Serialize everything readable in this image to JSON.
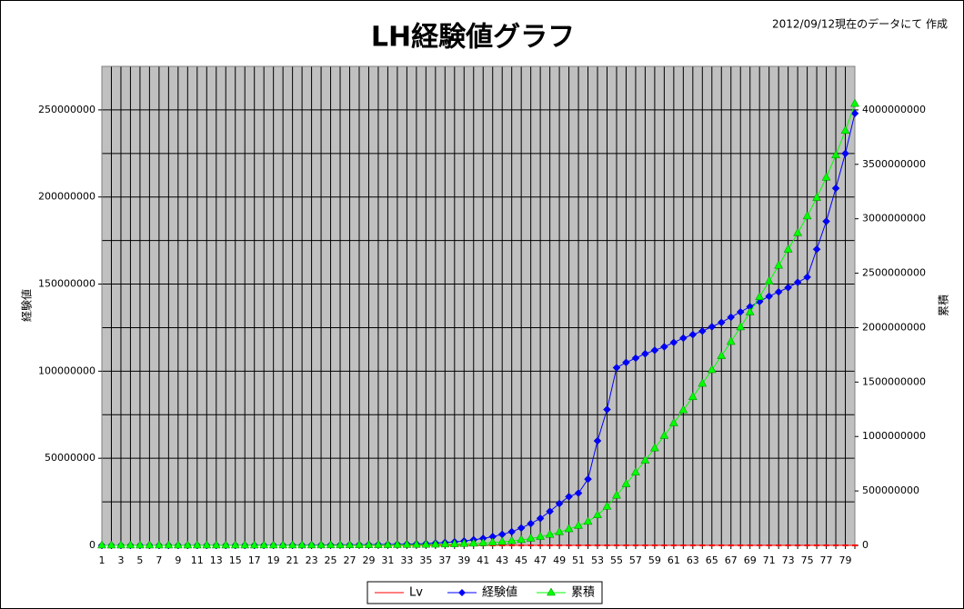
{
  "chart_data": {
    "type": "line",
    "title": "LH経験値グラフ",
    "subtitle": "2012/09/12現在のデータにて 作成",
    "y_label": "経験値",
    "y2_label": "累積",
    "categories": [
      "1",
      null,
      "3",
      null,
      "5",
      null,
      "7",
      null,
      "9",
      null,
      "11",
      null,
      "13",
      null,
      "15",
      null,
      "17",
      null,
      "19",
      null,
      "21",
      null,
      "23",
      null,
      "25",
      null,
      "27",
      null,
      "29",
      null,
      "31",
      null,
      "33",
      null,
      "35",
      null,
      "37",
      null,
      "39",
      null,
      "41",
      null,
      "43",
      null,
      "45",
      null,
      "47",
      null,
      "49",
      null,
      "51",
      null,
      "53",
      null,
      "55",
      null,
      "57",
      null,
      "59",
      null,
      "61",
      null,
      "63",
      null,
      "65",
      null,
      "67",
      null,
      "69",
      null,
      "71",
      null,
      "73",
      null,
      "75",
      null,
      "77",
      null,
      "79",
      null
    ],
    "series": [
      {
        "name": "Lv",
        "color": "#ff0000",
        "marker": "dash",
        "axis": "y",
        "values": [
          1,
          2,
          3,
          4,
          5,
          6,
          7,
          8,
          9,
          10,
          11,
          12,
          13,
          14,
          15,
          16,
          17,
          18,
          19,
          20,
          21,
          22,
          23,
          24,
          25,
          26,
          27,
          28,
          29,
          30,
          31,
          32,
          33,
          34,
          35,
          36,
          37,
          38,
          39,
          40,
          41,
          42,
          43,
          44,
          45,
          46,
          47,
          48,
          49,
          50,
          51,
          52,
          53,
          54,
          55,
          56,
          57,
          58,
          59,
          60,
          61,
          62,
          63,
          64,
          65,
          66,
          67,
          68,
          69,
          70,
          71,
          72,
          73,
          74,
          75,
          76,
          77,
          78,
          79,
          80
        ]
      },
      {
        "name": "経験値",
        "color": "#0000ff",
        "marker": "diamond",
        "axis": "y",
        "values": [
          0,
          50,
          150,
          300,
          500,
          800,
          1200,
          1800,
          2600,
          3700,
          5200,
          7200,
          10000,
          14000,
          19000,
          26000,
          35000,
          47000,
          62000,
          80000,
          100000,
          125000,
          155000,
          190000,
          230000,
          270000,
          310000,
          350000,
          400000,
          460000,
          530000,
          610000,
          700000,
          800000,
          1000000,
          1300000,
          1600000,
          2000000,
          2500000,
          3200000,
          4000000,
          5000000,
          6300000,
          7800000,
          10000000,
          12500000,
          15500000,
          19500000,
          24000000,
          28000000,
          30000000,
          38000000,
          60000000,
          78000000,
          102000000,
          105000000,
          107500000,
          110000000,
          112000000,
          114000000,
          116500000,
          119000000,
          121000000,
          123000000,
          125500000,
          128000000,
          131000000,
          134000000,
          137000000,
          140000000,
          143000000,
          145500000,
          148000000,
          151000000,
          154000000,
          170000000,
          186000000,
          205000000,
          225000000,
          248000000
        ]
      },
      {
        "name": "累積",
        "color": "#00ff00",
        "marker": "triangle",
        "axis": "y2",
        "values": [
          0,
          50,
          200,
          500,
          1000,
          1800,
          3000,
          4800,
          7400,
          11100,
          16300,
          23500,
          33500,
          47500,
          66500,
          92500,
          127500,
          174500,
          236500,
          316500,
          416500,
          541500,
          696500,
          886500,
          1116500,
          1386500,
          1696500,
          2046500,
          2446500,
          2906500,
          3436500,
          4046500,
          4746500,
          5546500,
          6546500,
          7846500,
          9446500,
          11446500,
          13946500,
          17146500,
          21146500,
          26146500,
          32446500,
          40246500,
          50246500,
          62746500,
          78246500,
          97746500,
          121746500,
          149746500,
          179746500,
          217746500,
          277746500,
          355746500,
          457746500,
          562746500,
          670246500,
          780246500,
          892246500,
          1006246500,
          1122746500,
          1241746500,
          1362746500,
          1485746500,
          1611246500,
          1739246500,
          1870246500,
          2004246500,
          2141246500,
          2281246500,
          2424246500,
          2569746500,
          2717746500,
          2868746500,
          3022746500,
          3192746500,
          3378746500,
          3583746500,
          3808746500,
          4056746500
        ]
      }
    ],
    "ylim": [
      0,
      275000000
    ],
    "yticks": [
      0,
      50000000,
      100000000,
      150000000,
      200000000,
      250000000
    ],
    "y_minor_ticks": [
      25000000,
      75000000,
      125000000,
      175000000,
      225000000,
      275000000
    ],
    "y2lim": [
      0,
      4400000000
    ],
    "y2ticks": [
      0,
      500000000,
      1000000000,
      1500000000,
      2000000000,
      2500000000,
      3000000000,
      3500000000,
      4000000000
    ],
    "grid": true,
    "plot_background": "#c0c0c0",
    "legend": "bottom"
  }
}
